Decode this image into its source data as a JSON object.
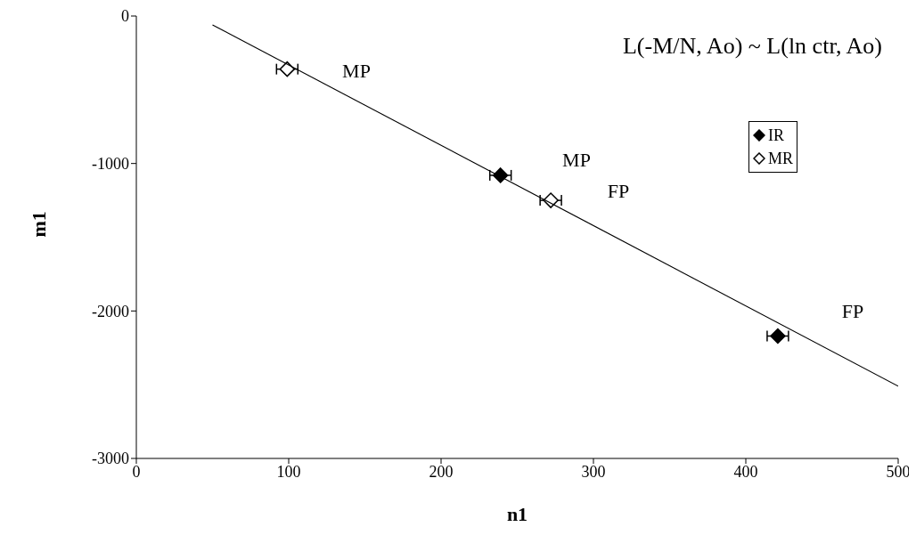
{
  "chart_data": {
    "type": "scatter",
    "title": "L(-M/N, Ao) ~ L(ln ctr, Ao)",
    "xlabel": "n1",
    "ylabel": "m1",
    "xlim": [
      0,
      500
    ],
    "xticks": [
      0,
      100,
      200,
      300,
      400,
      500
    ],
    "ylim": [
      -3000,
      0
    ],
    "yticks": [
      -3000,
      -2000,
      -1000,
      0
    ],
    "grid": false,
    "legend": "top right",
    "marker": "diamond",
    "series": [
      {
        "name": "IR",
        "color": "#000000",
        "x": [
          239,
          421
        ],
        "values": [
          -1080,
          -2170
        ],
        "xerrors": [
          7,
          7
        ]
      },
      {
        "name": "MR",
        "color": "#000000",
        "x": [
          99,
          272
        ],
        "values": [
          -360,
          -1250
        ],
        "xerrors": [
          7,
          7
        ]
      },
      {
        "type": "line",
        "color": "#000000",
        "x": [
          50,
          500
        ],
        "values": [
          -60,
          -2510
        ],
        "marker": "none"
      }
    ],
    "annotations": [
      "MP",
      "MP",
      "FP",
      "FP"
    ]
  }
}
